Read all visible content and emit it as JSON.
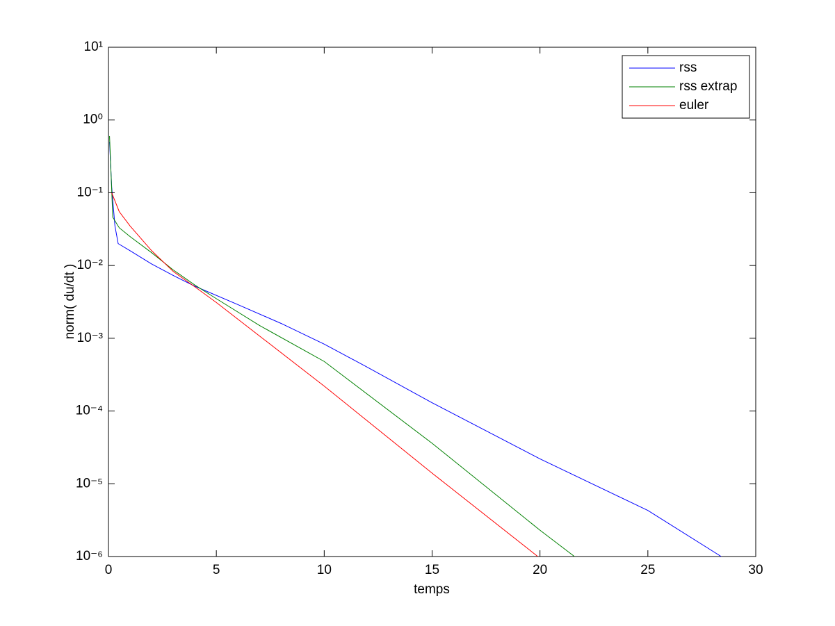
{
  "chart_data": {
    "type": "line",
    "xlabel": "temps",
    "ylabel": "norm( du/dt )",
    "xlim": [
      0,
      30
    ],
    "xticks": [
      0,
      5,
      10,
      15,
      20,
      25,
      30
    ],
    "ylim": [
      1e-06,
      10
    ],
    "log_y": true,
    "yticks": [
      {
        "value": 1e-06,
        "label": "10⁻⁶"
      },
      {
        "value": 1e-05,
        "label": "10⁻⁵"
      },
      {
        "value": 0.0001,
        "label": "10⁻⁴"
      },
      {
        "value": 0.001,
        "label": "10⁻³"
      },
      {
        "value": 0.01,
        "label": "10⁻²"
      },
      {
        "value": 0.1,
        "label": "10⁻¹"
      },
      {
        "value": 1,
        "label": "10⁰"
      },
      {
        "value": 10,
        "label": "10¹"
      }
    ],
    "legend": "upper right",
    "series": [
      {
        "name": "rss",
        "color": "#0000ff",
        "x": [
          0.05,
          0.15,
          0.3,
          0.45,
          1,
          2,
          3,
          4,
          6,
          8,
          10,
          12,
          15,
          20,
          25,
          28.4
        ],
        "values": [
          0.5,
          0.12,
          0.035,
          0.02,
          0.016,
          0.0105,
          0.0073,
          0.0052,
          0.0029,
          0.0016,
          0.00083,
          0.0004,
          0.00013,
          2.2e-05,
          4.3e-06,
          1e-06
        ]
      },
      {
        "name": "rss extrap",
        "color": "#008000",
        "x": [
          0.05,
          0.2,
          0.5,
          1,
          2,
          3,
          4,
          5,
          7,
          10,
          15,
          20,
          21.6
        ],
        "values": [
          0.6,
          0.046,
          0.033,
          0.025,
          0.015,
          0.0087,
          0.0054,
          0.0035,
          0.0015,
          0.00048,
          3.6e-05,
          2.3e-06,
          1e-06
        ]
      },
      {
        "name": "euler",
        "color": "#ff0000",
        "x": [
          0.15,
          0.5,
          1,
          2,
          3,
          4,
          5,
          10,
          15,
          19.9
        ],
        "values": [
          0.1,
          0.055,
          0.035,
          0.016,
          0.0083,
          0.0051,
          0.0031,
          0.00022,
          1.4e-05,
          1e-06
        ]
      }
    ]
  }
}
